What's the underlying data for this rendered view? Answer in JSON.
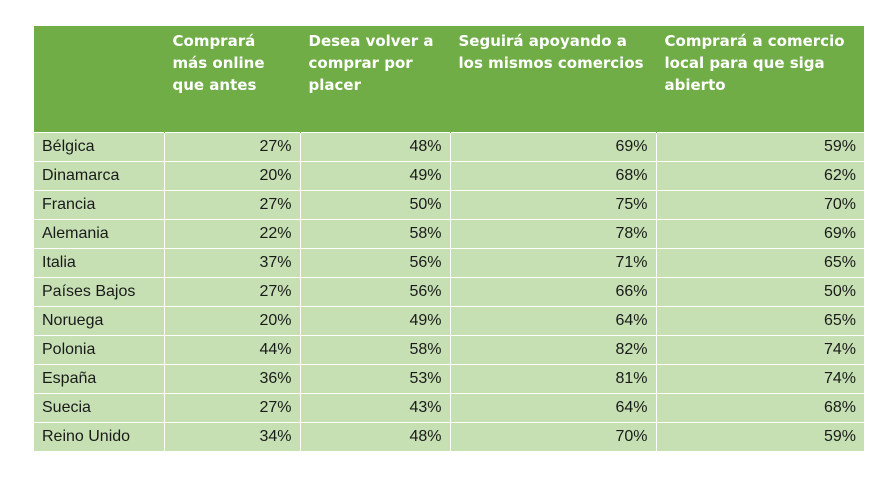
{
  "colors": {
    "header_bg": "#70ad47",
    "header_text": "#ffffff",
    "row_bg": "#c6e0b4",
    "row_text": "#1a1a1a"
  },
  "table": {
    "headers": [
      "",
      "Comprará más online que antes",
      "Desea volver a comprar por placer",
      "Seguirá apoyando a los mismos comercios",
      "Comprará a comercio local para que siga abierto"
    ],
    "rows": [
      [
        "Bélgica",
        "27%",
        "48%",
        "69%",
        "59%"
      ],
      [
        "Dinamarca",
        "20%",
        "49%",
        "68%",
        "62%"
      ],
      [
        "Francia",
        "27%",
        "50%",
        "75%",
        "70%"
      ],
      [
        "Alemania",
        "22%",
        "58%",
        "78%",
        "69%"
      ],
      [
        "Italia",
        "37%",
        "56%",
        "71%",
        "65%"
      ],
      [
        "Países Bajos",
        "27%",
        "56%",
        "66%",
        "50%"
      ],
      [
        "Noruega",
        "20%",
        "49%",
        "64%",
        "65%"
      ],
      [
        "Polonia",
        "44%",
        "58%",
        "82%",
        "74%"
      ],
      [
        "España",
        "36%",
        "53%",
        "81%",
        "74%"
      ],
      [
        "Suecia",
        "27%",
        "43%",
        "64%",
        "68%"
      ],
      [
        "Reino Unido",
        "34%",
        "48%",
        "70%",
        "59%"
      ]
    ]
  }
}
